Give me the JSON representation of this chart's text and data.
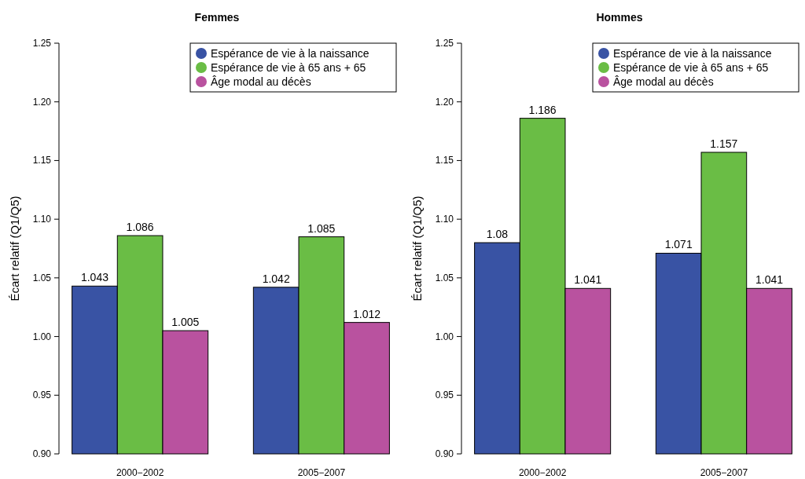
{
  "chart_data": [
    {
      "type": "bar",
      "title": "Femmes",
      "ylabel": "Écart relatif (Q1/Q5)",
      "categories": [
        "2000−2002",
        "2005−2007"
      ],
      "series": [
        {
          "name": "Espérance de vie à la naissance",
          "color": "#3953a4",
          "values": [
            1.043,
            1.042
          ]
        },
        {
          "name": "Espérance de vie à 65 ans + 65",
          "color": "#6abd45",
          "values": [
            1.086,
            1.085
          ]
        },
        {
          "name": "Âge modal au décès",
          "color": "#b9529f",
          "values": [
            1.005,
            1.012
          ]
        }
      ],
      "ylim": [
        0.9,
        1.25
      ],
      "yticks": [
        {
          "value": 0.9,
          "label": "0.90"
        },
        0.95,
        {
          "value": 1.0,
          "label": "1.00"
        },
        1.05,
        {
          "value": 1.1,
          "label": "1.10"
        },
        1.15,
        {
          "value": 1.2,
          "label": "1.20"
        },
        1.25
      ],
      "data_labels": true,
      "legend": "top right",
      "grid": false
    },
    {
      "type": "bar",
      "title": "Hommes",
      "ylabel": "Écart relatif (Q1/Q5)",
      "categories": [
        "2000−2002",
        "2005−2007"
      ],
      "series": [
        {
          "name": "Espérance de vie à la naissance",
          "color": "#3953a4",
          "values": [
            1.08,
            1.071
          ]
        },
        {
          "name": "Espérance de vie à 65 ans + 65",
          "color": "#6abd45",
          "values": [
            1.186,
            1.157
          ]
        },
        {
          "name": "Âge modal au décès",
          "color": "#b9529f",
          "values": [
            1.041,
            1.041
          ]
        }
      ],
      "ylim": [
        0.9,
        1.25
      ],
      "yticks": [
        {
          "value": 0.9,
          "label": "0.90"
        },
        0.95,
        {
          "value": 1.0,
          "label": "1.00"
        },
        1.05,
        {
          "value": 1.1,
          "label": "1.10"
        },
        1.15,
        {
          "value": 1.2,
          "label": "1.20"
        },
        1.25
      ],
      "data_labels": true,
      "legend": "top right",
      "grid": false
    }
  ]
}
